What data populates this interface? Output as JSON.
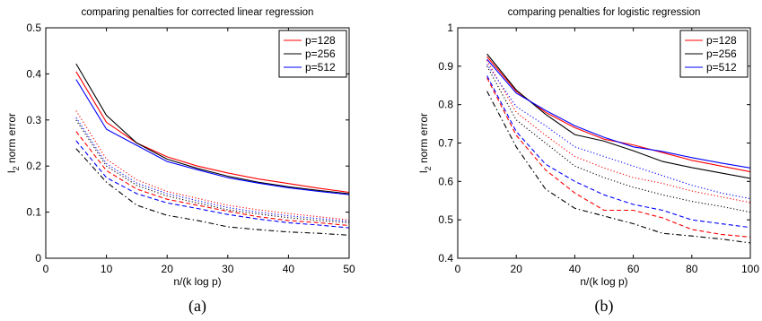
{
  "chart_data": [
    {
      "type": "line",
      "title": "comparing penalties for corrected linear regression",
      "xlabel": "n/(k log p)",
      "ylabel_base": "l",
      "ylabel_sub": "2",
      "ylabel_rest": " norm error",
      "caption": "(a)",
      "xlim": [
        0,
        50
      ],
      "ylim": [
        0,
        0.5
      ],
      "xticks": [
        0,
        10,
        20,
        30,
        40,
        50
      ],
      "yticks": [
        0,
        0.1,
        0.2,
        0.3,
        0.4,
        0.5
      ],
      "xtick_labels": [
        "0",
        "10",
        "20",
        "30",
        "40",
        "50"
      ],
      "ytick_labels": [
        "0",
        "0.1",
        "0.2",
        "0.3",
        "0.4",
        "0.5"
      ],
      "legend": [
        "p=128",
        "p=256",
        "p=512"
      ],
      "legend_position": "top-right",
      "grid": false,
      "x": [
        5,
        10,
        15,
        20,
        25,
        30,
        35,
        40,
        45,
        50
      ],
      "series": [
        {
          "name": "p=128",
          "color": "#ff0000",
          "style": "solid",
          "values": [
            0.405,
            0.295,
            0.25,
            0.22,
            0.2,
            0.185,
            0.172,
            0.162,
            0.152,
            0.143
          ]
        },
        {
          "name": "p=256",
          "color": "#000000",
          "style": "solid",
          "values": [
            0.422,
            0.31,
            0.25,
            0.215,
            0.195,
            0.178,
            0.165,
            0.155,
            0.147,
            0.14
          ]
        },
        {
          "color": "#0000ff",
          "style": "solid",
          "values": [
            0.388,
            0.28,
            0.245,
            0.21,
            0.192,
            0.175,
            0.163,
            0.153,
            0.145,
            0.138
          ]
        },
        {
          "color": "#ff0000",
          "style": "dotted",
          "values": [
            0.32,
            0.215,
            0.17,
            0.145,
            0.13,
            0.115,
            0.105,
            0.097,
            0.09,
            0.083
          ]
        },
        {
          "color": "#000000",
          "style": "dotted",
          "values": [
            0.3,
            0.2,
            0.158,
            0.135,
            0.12,
            0.105,
            0.096,
            0.088,
            0.082,
            0.077
          ]
        },
        {
          "color": "#0000ff",
          "style": "dotted",
          "values": [
            0.305,
            0.205,
            0.163,
            0.14,
            0.125,
            0.11,
            0.1,
            0.092,
            0.086,
            0.08
          ]
        },
        {
          "color": "#ff0000",
          "style": "dashed",
          "values": [
            0.275,
            0.19,
            0.15,
            0.128,
            0.115,
            0.102,
            0.09,
            0.082,
            0.077,
            0.071
          ]
        },
        {
          "color": "#0000ff",
          "style": "dashed",
          "values": [
            0.255,
            0.175,
            0.14,
            0.12,
            0.108,
            0.095,
            0.085,
            0.077,
            0.072,
            0.066
          ]
        },
        {
          "color": "#000000",
          "style": "dashdot",
          "values": [
            0.238,
            0.165,
            0.115,
            0.093,
            0.082,
            0.068,
            0.062,
            0.057,
            0.054,
            0.05
          ]
        }
      ]
    },
    {
      "type": "line",
      "title": "comparing penalties for logistic regression",
      "xlabel": "n/(k log p)",
      "ylabel_base": "l",
      "ylabel_sub": "2",
      "ylabel_rest": " norm error",
      "caption": "(b)",
      "xlim": [
        0,
        100
      ],
      "ylim": [
        0.4,
        1
      ],
      "xticks": [
        0,
        20,
        40,
        60,
        80,
        100
      ],
      "yticks": [
        0.4,
        0.5,
        0.6,
        0.7,
        0.8,
        0.9,
        1
      ],
      "xtick_labels": [
        "0",
        "20",
        "40",
        "60",
        "80",
        "100"
      ],
      "ytick_labels": [
        "0.4",
        "0.5",
        "0.6",
        "0.7",
        "0.8",
        "0.9",
        "1"
      ],
      "legend": [
        "p=128",
        "p=256",
        "p=512"
      ],
      "legend_position": "top-right",
      "grid": false,
      "x": [
        10,
        20,
        30,
        40,
        50,
        60,
        70,
        80,
        90,
        100
      ],
      "series": [
        {
          "color": "#ff0000",
          "style": "solid",
          "values": [
            0.925,
            0.835,
            0.78,
            0.74,
            0.71,
            0.695,
            0.675,
            0.655,
            0.64,
            0.625
          ]
        },
        {
          "color": "#000000",
          "style": "solid",
          "values": [
            0.932,
            0.838,
            0.775,
            0.722,
            0.705,
            0.68,
            0.652,
            0.636,
            0.622,
            0.608
          ]
        },
        {
          "color": "#0000ff",
          "style": "solid",
          "values": [
            0.918,
            0.83,
            0.785,
            0.745,
            0.715,
            0.69,
            0.678,
            0.662,
            0.648,
            0.635
          ]
        },
        {
          "color": "#ff0000",
          "style": "dotted",
          "values": [
            0.915,
            0.78,
            0.72,
            0.665,
            0.635,
            0.61,
            0.595,
            0.575,
            0.56,
            0.545
          ]
        },
        {
          "color": "#000000",
          "style": "dotted",
          "values": [
            0.9,
            0.76,
            0.7,
            0.64,
            0.61,
            0.585,
            0.565,
            0.548,
            0.535,
            0.52
          ]
        },
        {
          "color": "#0000ff",
          "style": "dotted",
          "values": [
            0.905,
            0.795,
            0.745,
            0.69,
            0.665,
            0.64,
            0.615,
            0.59,
            0.57,
            0.555
          ]
        },
        {
          "color": "#ff0000",
          "style": "dashed",
          "values": [
            0.87,
            0.72,
            0.63,
            0.57,
            0.525,
            0.525,
            0.505,
            0.475,
            0.462,
            0.455
          ]
        },
        {
          "color": "#0000ff",
          "style": "dashed",
          "values": [
            0.875,
            0.73,
            0.645,
            0.6,
            0.565,
            0.54,
            0.525,
            0.5,
            0.49,
            0.48
          ]
        },
        {
          "color": "#000000",
          "style": "dashdot",
          "values": [
            0.835,
            0.69,
            0.58,
            0.53,
            0.51,
            0.49,
            0.465,
            0.458,
            0.45,
            0.44
          ]
        }
      ]
    }
  ]
}
